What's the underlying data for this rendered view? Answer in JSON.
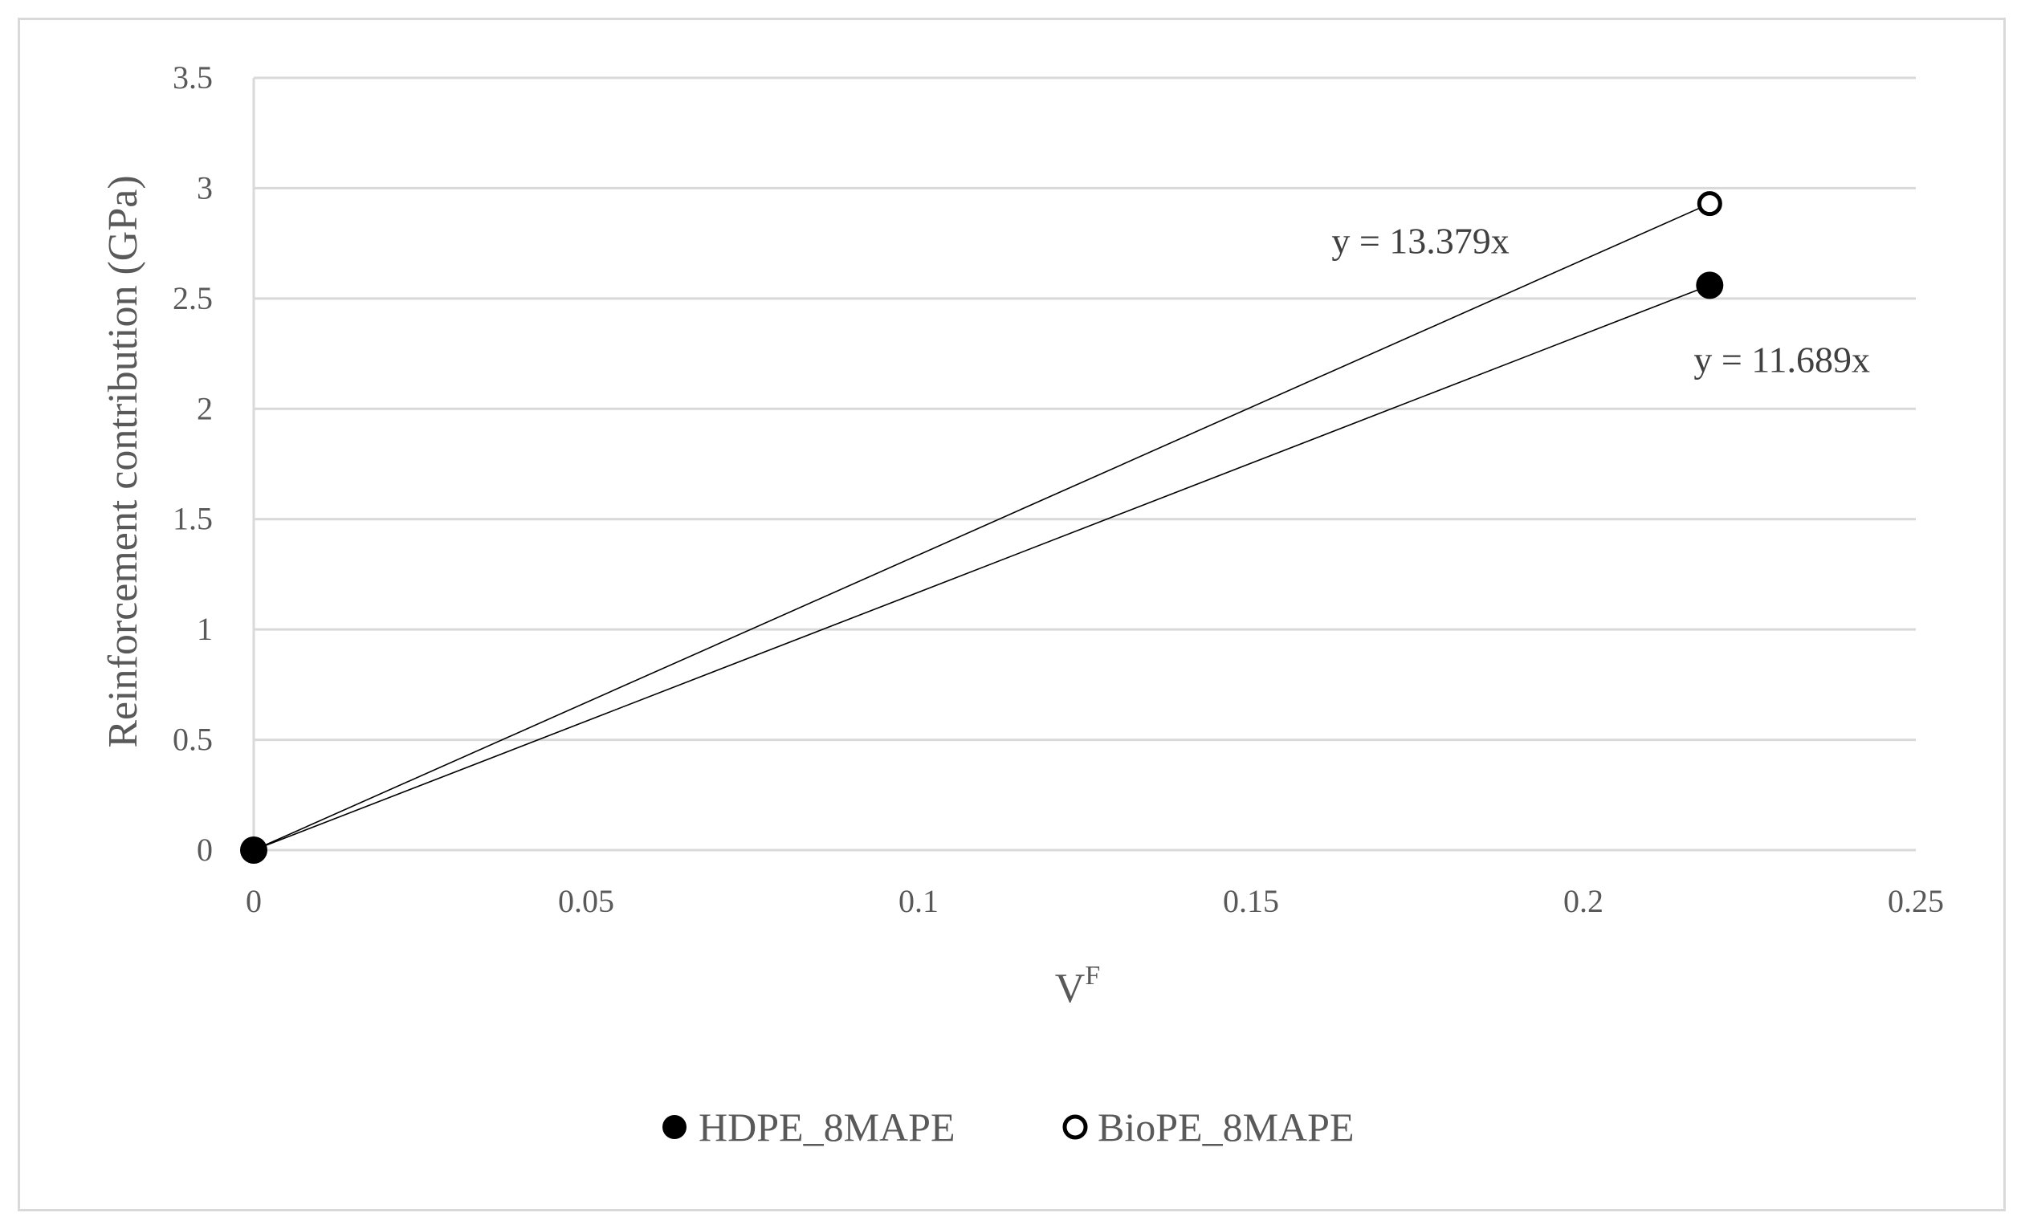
{
  "chart_data": {
    "type": "scatter",
    "xlabel": "V",
    "xlabel_superscript": "F",
    "ylabel": "Reinforcement contribution (GPa)",
    "xlim": [
      0,
      0.25
    ],
    "ylim": [
      0,
      3.5
    ],
    "x_ticks": [
      "0",
      "0.05",
      "0.1",
      "0.15",
      "0.2",
      "0.25"
    ],
    "y_ticks": [
      "0",
      "0.5",
      "1",
      "1.5",
      "2",
      "2.5",
      "3",
      "3.5"
    ],
    "grid": "horizontal",
    "legend_position": "bottom",
    "series": [
      {
        "name": "HDPE_8MAPE",
        "marker": "filled-circle",
        "color": "#000000",
        "points": [
          {
            "x": 0,
            "y": 0
          },
          {
            "x": 0.219,
            "y": 2.56
          }
        ],
        "trendline": {
          "slope": 11.689,
          "label": "y = 11.689x"
        }
      },
      {
        "name": "BioPE_8MAPE",
        "marker": "open-circle",
        "color": "#000000",
        "points": [
          {
            "x": 0,
            "y": 0
          },
          {
            "x": 0.219,
            "y": 2.93
          }
        ],
        "trendline": {
          "slope": 13.379,
          "label": "y = 13.379x"
        }
      }
    ]
  },
  "colors": {
    "grid": "#d9d9d9",
    "axis_text": "#595959",
    "marker": "#000000",
    "frame": "#d9d9d9"
  }
}
